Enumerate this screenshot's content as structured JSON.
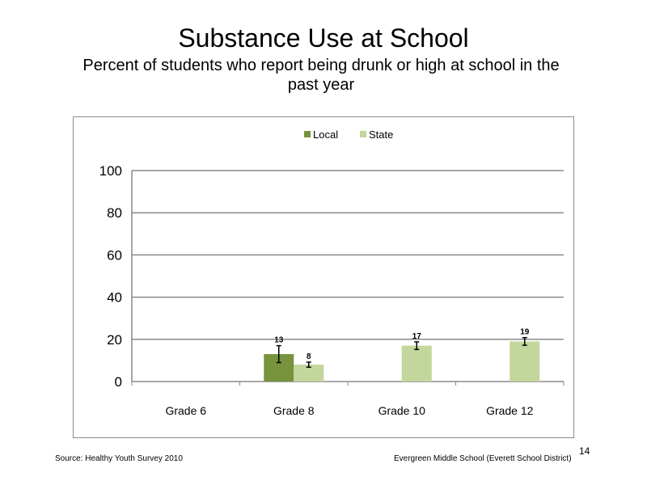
{
  "slide": {
    "title": "Substance Use at School",
    "subtitle": "Percent of students who report being drunk or high at school in the past year",
    "source": "Source: Healthy Youth Survey 2010",
    "school": "Evergreen Middle School (Everett School District)",
    "page_number": "14"
  },
  "chart_data": {
    "type": "bar",
    "title": "",
    "xlabel": "",
    "ylabel": "",
    "categories": [
      "Grade 6",
      "Grade 8",
      "Grade 10",
      "Grade 12"
    ],
    "series": [
      {
        "name": "Local",
        "color": "#77933c",
        "values": [
          null,
          13,
          null,
          null
        ],
        "error": [
          null,
          4,
          null,
          null
        ]
      },
      {
        "name": "State",
        "color": "#c3d69b",
        "values": [
          null,
          8,
          17,
          19
        ],
        "error": [
          null,
          1.2,
          1.8,
          1.8
        ]
      }
    ],
    "data_labels": {
      "Local": [
        null,
        "13",
        null,
        null
      ],
      "State": [
        null,
        "8",
        "17",
        "19"
      ]
    },
    "ylim": [
      0,
      100
    ],
    "yticks": [
      0,
      20,
      40,
      60,
      80,
      100
    ],
    "grid": true,
    "legend_position": "top"
  }
}
